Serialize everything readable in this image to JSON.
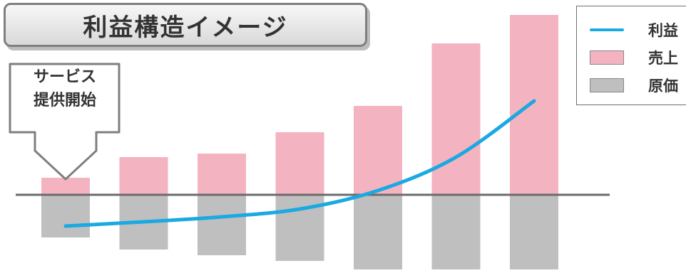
{
  "title": "利益構造イメージ",
  "callout": {
    "line1": "サービス",
    "line2": "提供開始"
  },
  "legend": {
    "items": [
      {
        "label": "利益",
        "kind": "line",
        "color": "#1aa9e1"
      },
      {
        "label": "売上",
        "kind": "rect",
        "color": "#f4b3c0"
      },
      {
        "label": "原価",
        "kind": "rect",
        "color": "#bfbfbf"
      }
    ]
  },
  "chart_data": {
    "type": "bar",
    "categories": [
      "",
      "",
      "",
      "",
      "",
      "",
      ""
    ],
    "series": [
      {
        "name": "売上",
        "color": "#f4b3c0",
        "values": [
          24,
          53,
          58,
          88,
          125,
          213,
          253
        ]
      },
      {
        "name": "原価",
        "color": "#bfbfbf",
        "values": [
          -60,
          -77,
          -85,
          -93,
          -105,
          -105,
          -105
        ]
      },
      {
        "name": "利益",
        "color": "#1aa9e1",
        "type": "line",
        "values": [
          -44,
          -38,
          -31,
          -20,
          6,
          53,
          132
        ]
      }
    ],
    "ylim": [
      -105,
      255
    ],
    "grid": false,
    "legend": "top-right"
  }
}
